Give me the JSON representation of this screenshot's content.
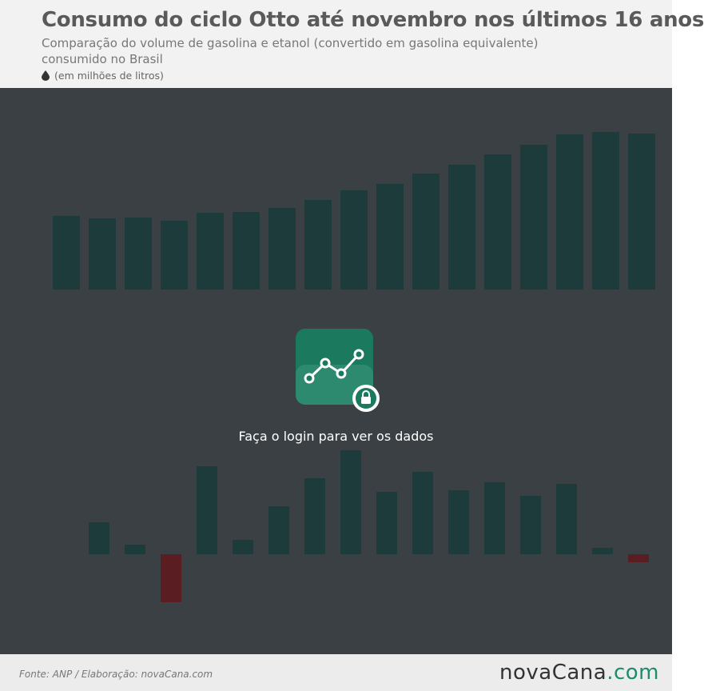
{
  "header": {
    "title": "Consumo do ciclo Otto até novembro nos últimos 16 anos",
    "subtitle": "Comparação do volume de gasolina e etanol (convertido em gasolina equivalente) consumido no Brasil",
    "unit": "(em milhões de litros)"
  },
  "overlay": {
    "message": "Faça o login para ver os dados"
  },
  "footer": {
    "source": "Fonte: ANP  / Elaboração: novaCana.com",
    "logo_name": "novaCana",
    "logo_domain": ".com"
  }
}
